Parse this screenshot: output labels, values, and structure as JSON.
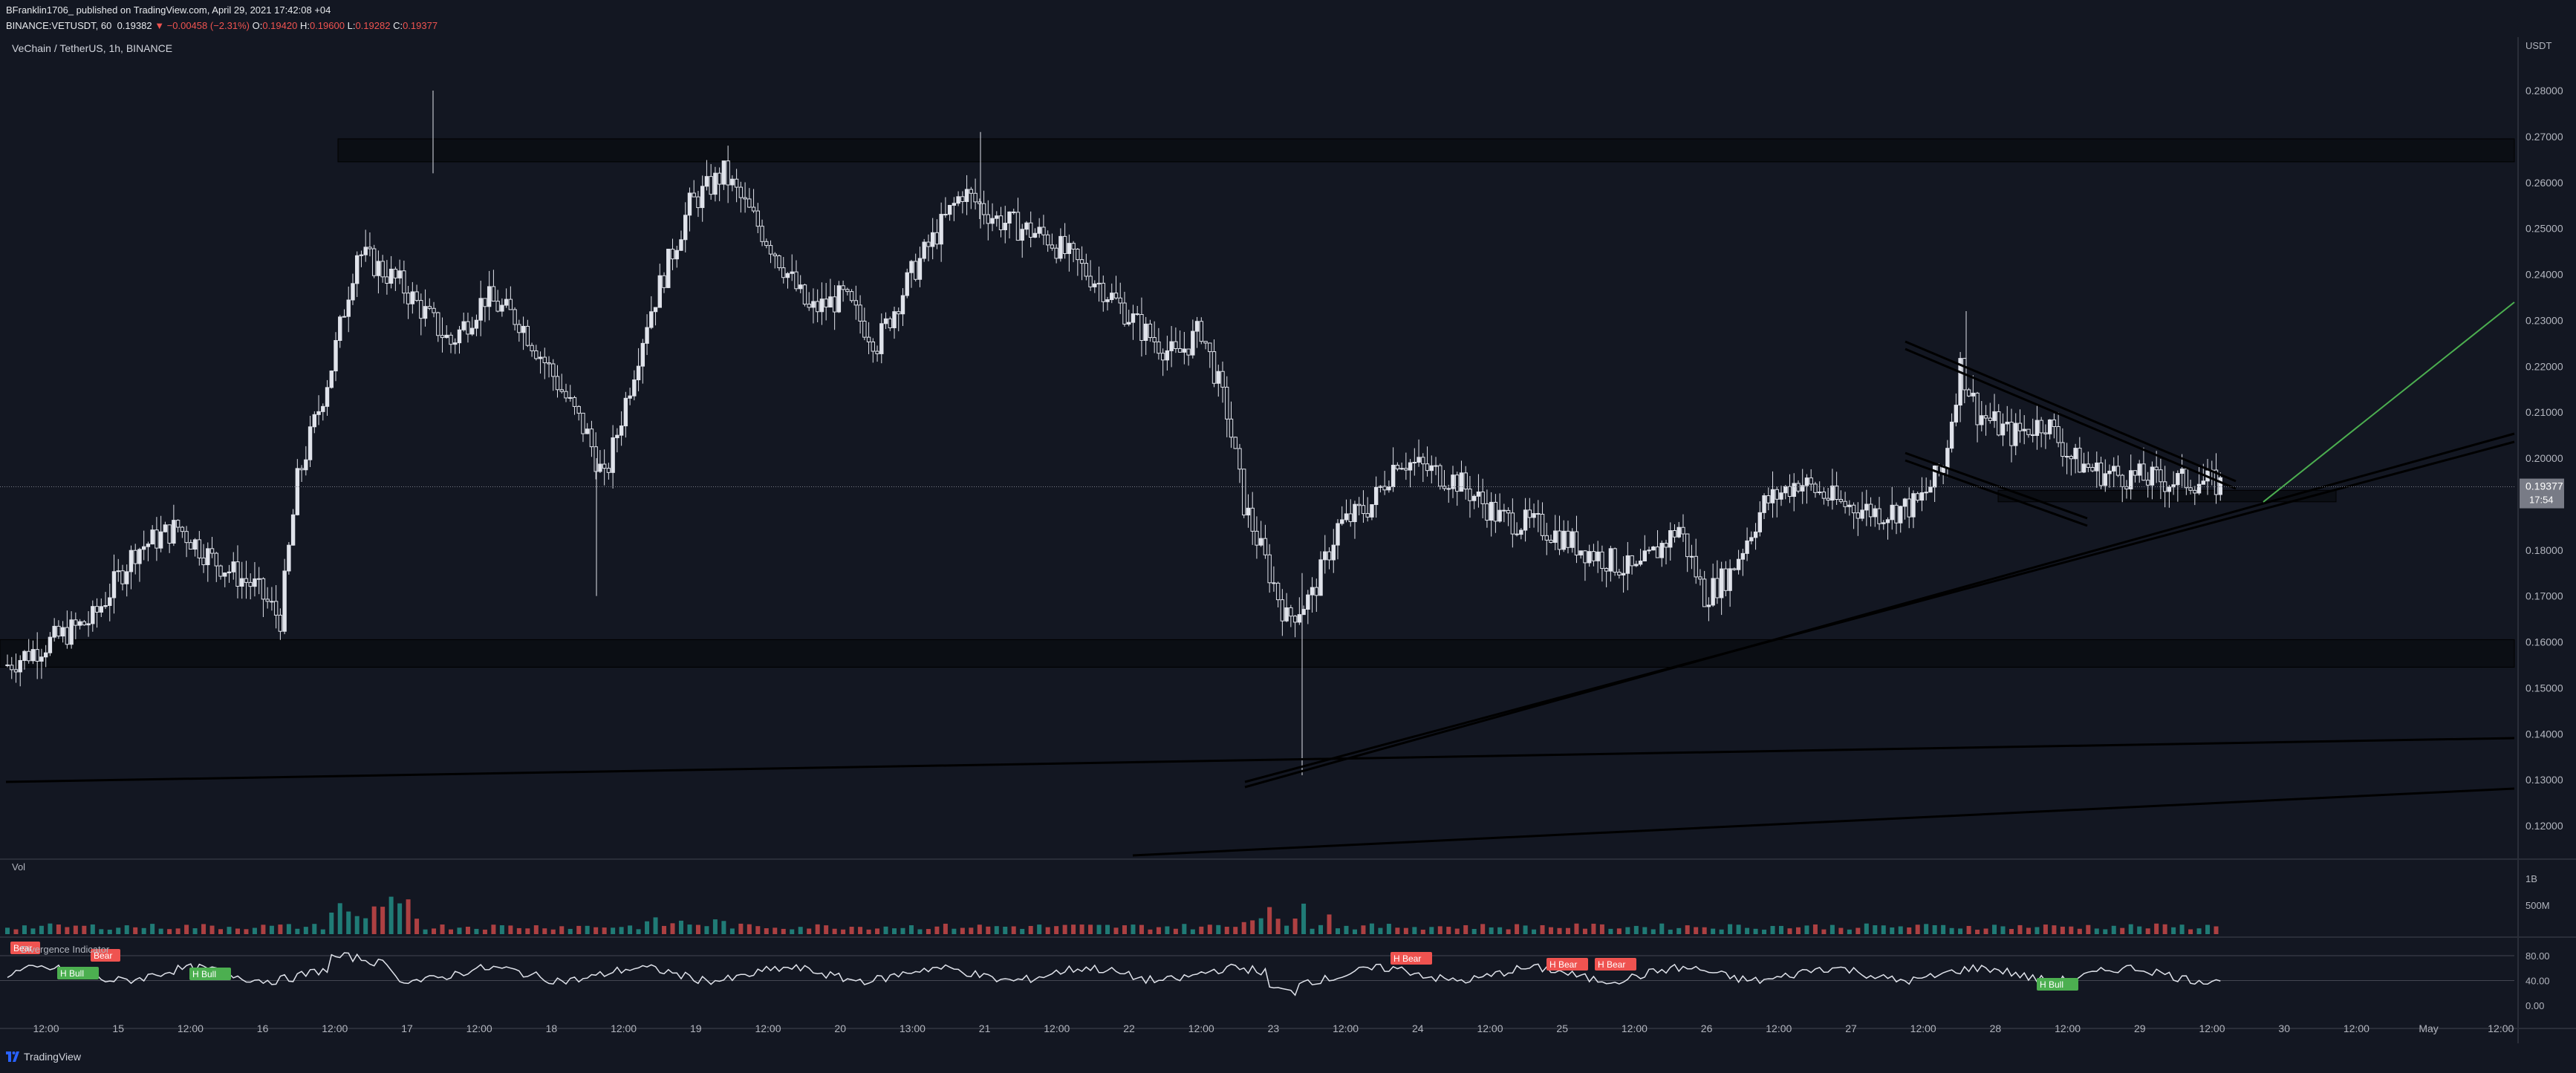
{
  "header": {
    "publisher_line": "BFranklin1706_ published on TradingView.com, April 29, 2021 17:42:08 +04",
    "symbol": "BINANCE:VETUSDT, 60",
    "last": "0.19382",
    "change": "▼ −0.00458 (−2.31%)",
    "o_label": "O:",
    "o_value": "0.19420",
    "h_label": "H:",
    "h_value": "0.19600",
    "l_label": "L:",
    "l_value": "0.19282",
    "c_label": "C:",
    "c_value": "0.19377"
  },
  "legend_title": "VeChain / TetherUS, 1h, BINANCE",
  "price_axis": {
    "currency": "USDT",
    "ticks": [
      "0.28000",
      "0.27000",
      "0.26000",
      "0.25000",
      "0.24000",
      "0.23000",
      "0.22000",
      "0.21000",
      "0.20000",
      "0.19000",
      "0.18000",
      "0.17000",
      "0.16000",
      "0.15000",
      "0.14000",
      "0.13000",
      "0.12000"
    ],
    "last_price_label": "0.19377",
    "countdown_label": "17:54"
  },
  "volume_pane": {
    "label": "Vol",
    "ticks": [
      "1B",
      "500M"
    ]
  },
  "indicator_pane": {
    "label": "Divergence Indicator",
    "ticks": [
      "80.00",
      "40.00",
      "0.00"
    ],
    "markers": [
      {
        "text": "Bear",
        "type": "bear"
      },
      {
        "text": "Bear",
        "type": "bear"
      },
      {
        "text": "H Bull",
        "type": "bull"
      },
      {
        "text": "H Bull",
        "type": "bull"
      },
      {
        "text": "H Bear",
        "type": "bear"
      },
      {
        "text": "H Bear",
        "type": "bear"
      },
      {
        "text": "H Bear",
        "type": "bear"
      },
      {
        "text": "H Bull",
        "type": "bull"
      }
    ]
  },
  "time_axis": [
    "12:00",
    "15",
    "12:00",
    "16",
    "12:00",
    "17",
    "12:00",
    "18",
    "12:00",
    "19",
    "12:00",
    "20",
    "13:00",
    "21",
    "12:00",
    "22",
    "12:00",
    "23",
    "12:00",
    "24",
    "12:00",
    "25",
    "12:00",
    "26",
    "12:00",
    "27",
    "12:00",
    "28",
    "12:00",
    "29",
    "12:00",
    "30",
    "12:00",
    "May",
    "12:00"
  ],
  "footer": {
    "brand": "TradingView"
  },
  "colors": {
    "background": "#131722",
    "candle": "#e0e3eb",
    "vol_up": "#26a69a",
    "vol_down": "#ef5350",
    "zone": "#0b0d12",
    "projection": "#4caf50",
    "bear_label": "#ef5350",
    "bull_label": "#4caf50"
  },
  "chart_data": [
    {
      "type": "candlestick",
      "title": "VeChain / TetherUS, 1h, BINANCE",
      "ylabel": "USDT",
      "ylim": [
        0.115,
        0.285
      ],
      "x_labels": [
        "12:00",
        "15",
        "12:00",
        "16",
        "12:00",
        "17",
        "12:00",
        "18",
        "12:00",
        "19",
        "12:00",
        "20",
        "13:00",
        "21",
        "12:00",
        "22",
        "12:00",
        "23",
        "12:00",
        "24",
        "12:00",
        "25",
        "12:00",
        "26",
        "12:00",
        "27",
        "12:00",
        "28",
        "12:00",
        "29",
        "12:00",
        "30",
        "12:00",
        "May",
        "12:00"
      ],
      "price_path": [
        [
          0,
          0.155
        ],
        [
          10,
          0.16
        ],
        [
          20,
          0.165
        ],
        [
          30,
          0.18
        ],
        [
          40,
          0.185
        ],
        [
          48,
          0.178
        ],
        [
          58,
          0.172
        ],
        [
          64,
          0.165
        ],
        [
          68,
          0.195
        ],
        [
          76,
          0.22
        ],
        [
          82,
          0.245
        ],
        [
          92,
          0.238
        ],
        [
          104,
          0.225
        ],
        [
          112,
          0.235
        ],
        [
          120,
          0.23
        ],
        [
          128,
          0.218
        ],
        [
          136,
          0.205
        ],
        [
          140,
          0.195
        ],
        [
          150,
          0.23
        ],
        [
          160,
          0.255
        ],
        [
          168,
          0.262
        ],
        [
          180,
          0.245
        ],
        [
          188,
          0.232
        ],
        [
          196,
          0.235
        ],
        [
          204,
          0.225
        ],
        [
          212,
          0.24
        ],
        [
          224,
          0.258
        ],
        [
          232,
          0.252
        ],
        [
          244,
          0.248
        ],
        [
          256,
          0.238
        ],
        [
          266,
          0.228
        ],
        [
          274,
          0.222
        ],
        [
          280,
          0.228
        ],
        [
          286,
          0.21
        ],
        [
          290,
          0.19
        ],
        [
          300,
          0.165
        ],
        [
          306,
          0.17
        ],
        [
          312,
          0.185
        ],
        [
          320,
          0.19
        ],
        [
          326,
          0.2
        ],
        [
          340,
          0.195
        ],
        [
          350,
          0.187
        ],
        [
          360,
          0.185
        ],
        [
          370,
          0.18
        ],
        [
          382,
          0.175
        ],
        [
          392,
          0.185
        ],
        [
          398,
          0.17
        ],
        [
          404,
          0.175
        ],
        [
          412,
          0.19
        ],
        [
          420,
          0.195
        ],
        [
          430,
          0.19
        ],
        [
          440,
          0.188
        ],
        [
          448,
          0.19
        ],
        [
          454,
          0.198
        ],
        [
          458,
          0.22
        ],
        [
          462,
          0.21
        ],
        [
          470,
          0.205
        ],
        [
          478,
          0.208
        ],
        [
          484,
          0.2
        ],
        [
          490,
          0.197
        ],
        [
          498,
          0.196
        ],
        [
          506,
          0.195
        ],
        [
          514,
          0.195
        ],
        [
          520,
          0.194
        ]
      ],
      "horizontal_zones": [
        {
          "from": 0.2645,
          "to": 0.2695
        },
        {
          "from": 0.1545,
          "to": 0.1605
        },
        {
          "from": 0.1905,
          "to": 0.193
        }
      ],
      "last_price": 0.19377
    },
    {
      "type": "bar",
      "title": "Vol",
      "ticks": [
        "1B",
        "500M"
      ]
    },
    {
      "type": "line",
      "title": "Divergence Indicator",
      "ylim": [
        0,
        100
      ],
      "ticks": [
        "80.00",
        "40.00",
        "0.00"
      ]
    }
  ]
}
